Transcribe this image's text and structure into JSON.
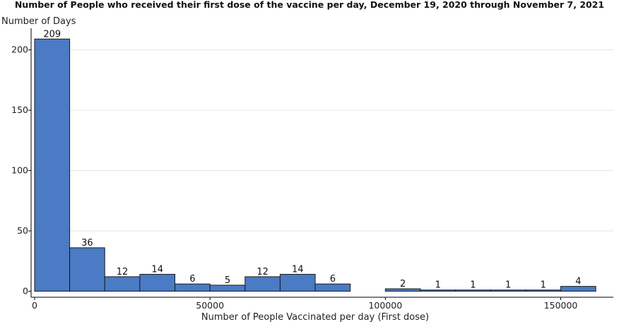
{
  "chart_data": {
    "type": "bar",
    "title": "Number of People who received their first dose of the vaccine per day, December 19, 2020 through November 7, 2021",
    "xlabel": "Number of People Vaccinated per day (First dose)",
    "ylabel": "Number of Days",
    "bin_width": 10000,
    "bins": [
      {
        "start": 0,
        "end": 10000,
        "value": 209
      },
      {
        "start": 10000,
        "end": 20000,
        "value": 36
      },
      {
        "start": 20000,
        "end": 30000,
        "value": 12
      },
      {
        "start": 30000,
        "end": 40000,
        "value": 14
      },
      {
        "start": 40000,
        "end": 50000,
        "value": 6
      },
      {
        "start": 50000,
        "end": 60000,
        "value": 5
      },
      {
        "start": 60000,
        "end": 70000,
        "value": 12
      },
      {
        "start": 70000,
        "end": 80000,
        "value": 14
      },
      {
        "start": 80000,
        "end": 90000,
        "value": 6
      },
      {
        "start": 100000,
        "end": 110000,
        "value": 2
      },
      {
        "start": 110000,
        "end": 120000,
        "value": 1
      },
      {
        "start": 120000,
        "end": 130000,
        "value": 1
      },
      {
        "start": 130000,
        "end": 140000,
        "value": 1
      },
      {
        "start": 140000,
        "end": 150000,
        "value": 1
      },
      {
        "start": 150000,
        "end": 160000,
        "value": 4
      }
    ],
    "xlim": [
      -1000,
      165000
    ],
    "ylim": [
      -5,
      215
    ],
    "xticks": [
      0,
      50000,
      100000,
      150000
    ],
    "yticks": [
      0,
      50,
      100,
      150,
      200
    ],
    "grid": true,
    "legend": "none"
  }
}
